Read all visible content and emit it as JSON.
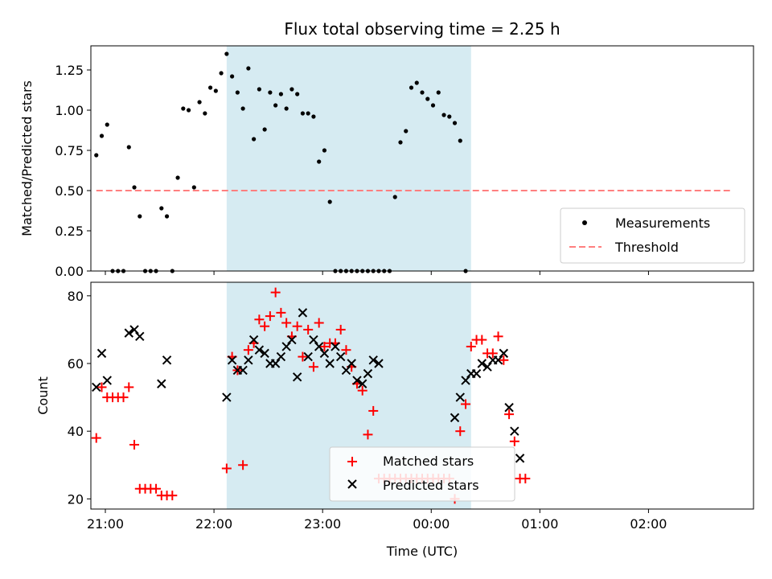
{
  "chart_data": [
    {
      "type": "scatter",
      "title": "Flux total observing time = 2.25 h",
      "xlabel": "",
      "ylabel": "Matched/Predicted stars",
      "x_unit": "time (UTC)",
      "xlim": [
        "20:52",
        "02:58"
      ],
      "ylim": [
        0,
        1.4
      ],
      "yticks": [
        "0.00",
        "0.25",
        "0.50",
        "0.75",
        "1.00",
        "1.25"
      ],
      "shaded_span": {
        "start": "22:07",
        "end": "00:22",
        "color": "#add8e6"
      },
      "threshold": {
        "label": "Threshold",
        "value": 0.5,
        "x_start": "20:55",
        "x_end": "02:45",
        "color": "#ff7f7f"
      },
      "legend": {
        "position": "lower-right",
        "entries": [
          "Measurements",
          "Threshold"
        ]
      },
      "series": [
        {
          "name": "Measurements",
          "color": "#000000",
          "points": [
            [
              "20:55",
              0.72
            ],
            [
              "20:58",
              0.84
            ],
            [
              "21:01",
              0.91
            ],
            [
              "21:04",
              0.0
            ],
            [
              "21:07",
              0.0
            ],
            [
              "21:10",
              0.0
            ],
            [
              "21:13",
              0.77
            ],
            [
              "21:16",
              0.52
            ],
            [
              "21:19",
              0.34
            ],
            [
              "21:22",
              0.0
            ],
            [
              "21:25",
              0.0
            ],
            [
              "21:28",
              0.0
            ],
            [
              "21:31",
              0.39
            ],
            [
              "21:34",
              0.34
            ],
            [
              "21:37",
              0.0
            ],
            [
              "21:40",
              0.58
            ],
            [
              "21:43",
              1.01
            ],
            [
              "21:46",
              1.0
            ],
            [
              "21:49",
              0.52
            ],
            [
              "21:52",
              1.05
            ],
            [
              "21:55",
              0.98
            ],
            [
              "21:58",
              1.14
            ],
            [
              "22:01",
              1.12
            ],
            [
              "22:04",
              1.23
            ],
            [
              "22:07",
              1.35
            ],
            [
              "22:10",
              1.21
            ],
            [
              "22:13",
              1.11
            ],
            [
              "22:16",
              1.01
            ],
            [
              "22:19",
              1.26
            ],
            [
              "22:22",
              0.82
            ],
            [
              "22:25",
              1.13
            ],
            [
              "22:28",
              0.88
            ],
            [
              "22:31",
              1.11
            ],
            [
              "22:34",
              1.03
            ],
            [
              "22:37",
              1.1
            ],
            [
              "22:40",
              1.01
            ],
            [
              "22:43",
              1.13
            ],
            [
              "22:46",
              1.1
            ],
            [
              "22:49",
              0.98
            ],
            [
              "22:52",
              0.98
            ],
            [
              "22:55",
              0.96
            ],
            [
              "22:58",
              0.68
            ],
            [
              "23:01",
              0.75
            ],
            [
              "23:04",
              0.43
            ],
            [
              "23:07",
              0.0
            ],
            [
              "23:10",
              0.0
            ],
            [
              "23:13",
              0.0
            ],
            [
              "23:16",
              0.0
            ],
            [
              "23:19",
              0.0
            ],
            [
              "23:22",
              0.0
            ],
            [
              "23:25",
              0.0
            ],
            [
              "23:28",
              0.0
            ],
            [
              "23:31",
              0.0
            ],
            [
              "23:34",
              0.0
            ],
            [
              "23:37",
              0.0
            ],
            [
              "23:40",
              0.46
            ],
            [
              "23:43",
              0.8
            ],
            [
              "23:46",
              0.87
            ],
            [
              "23:49",
              1.14
            ],
            [
              "23:52",
              1.17
            ],
            [
              "23:55",
              1.11
            ],
            [
              "23:58",
              1.07
            ],
            [
              "00:01",
              1.03
            ],
            [
              "00:04",
              1.11
            ],
            [
              "00:07",
              0.97
            ],
            [
              "00:10",
              0.96
            ],
            [
              "00:13",
              0.92
            ],
            [
              "00:16",
              0.81
            ],
            [
              "00:19",
              0.0
            ]
          ]
        }
      ]
    },
    {
      "type": "scatter",
      "title": "",
      "xlabel": "Time (UTC)",
      "ylabel": "Count",
      "xlim": [
        "20:52",
        "02:58"
      ],
      "ylim": [
        17,
        84
      ],
      "xticks": [
        "21:00",
        "22:00",
        "23:00",
        "00:00",
        "01:00",
        "02:00"
      ],
      "yticks": [
        "20",
        "40",
        "60",
        "80"
      ],
      "shaded_span": {
        "start": "22:07",
        "end": "00:22",
        "color": "#add8e6"
      },
      "legend": {
        "position": "bottom-center",
        "entries": [
          "Matched stars",
          "Predicted stars"
        ]
      },
      "series": [
        {
          "name": "Matched stars",
          "marker": "plus",
          "color": "#ff0000",
          "points": [
            [
              "20:55",
              38
            ],
            [
              "20:58",
              53
            ],
            [
              "21:01",
              50
            ],
            [
              "21:04",
              50
            ],
            [
              "21:07",
              50
            ],
            [
              "21:10",
              50
            ],
            [
              "21:13",
              53
            ],
            [
              "21:16",
              36
            ],
            [
              "21:19",
              23
            ],
            [
              "21:22",
              23
            ],
            [
              "21:25",
              23
            ],
            [
              "21:28",
              23
            ],
            [
              "21:31",
              21
            ],
            [
              "21:34",
              21
            ],
            [
              "21:37",
              21
            ],
            [
              "22:07",
              29
            ],
            [
              "22:10",
              62
            ],
            [
              "22:13",
              58
            ],
            [
              "22:16",
              30
            ],
            [
              "22:19",
              64
            ],
            [
              "22:22",
              66
            ],
            [
              "22:25",
              73
            ],
            [
              "22:28",
              71
            ],
            [
              "22:31",
              74
            ],
            [
              "22:34",
              81
            ],
            [
              "22:37",
              75
            ],
            [
              "22:40",
              72
            ],
            [
              "22:43",
              68
            ],
            [
              "22:46",
              71
            ],
            [
              "22:49",
              62
            ],
            [
              "22:52",
              70
            ],
            [
              "22:55",
              59
            ],
            [
              "22:58",
              72
            ],
            [
              "23:01",
              65
            ],
            [
              "23:04",
              66
            ],
            [
              "23:07",
              66
            ],
            [
              "23:10",
              70
            ],
            [
              "23:13",
              64
            ],
            [
              "23:16",
              59
            ],
            [
              "23:19",
              54
            ],
            [
              "23:22",
              52
            ],
            [
              "23:25",
              39
            ],
            [
              "23:28",
              46
            ],
            [
              "23:31",
              26
            ],
            [
              "23:34",
              26
            ],
            [
              "23:37",
              26
            ],
            [
              "23:40",
              26
            ],
            [
              "23:43",
              26
            ],
            [
              "23:46",
              26
            ],
            [
              "23:49",
              26
            ],
            [
              "23:52",
              26
            ],
            [
              "23:55",
              26
            ],
            [
              "23:58",
              26
            ],
            [
              "00:01",
              26
            ],
            [
              "00:04",
              26
            ],
            [
              "00:07",
              26
            ],
            [
              "00:10",
              26
            ],
            [
              "00:13",
              20
            ],
            [
              "00:16",
              40
            ],
            [
              "00:19",
              48
            ],
            [
              "00:22",
              65
            ],
            [
              "00:25",
              67
            ],
            [
              "00:28",
              67
            ],
            [
              "00:31",
              63
            ],
            [
              "00:34",
              63
            ],
            [
              "00:37",
              68
            ],
            [
              "00:40",
              61
            ],
            [
              "00:43",
              45
            ],
            [
              "00:46",
              37
            ],
            [
              "00:49",
              26
            ],
            [
              "00:52",
              26
            ]
          ]
        },
        {
          "name": "Predicted stars",
          "marker": "x",
          "color": "#000000",
          "points": [
            [
              "20:55",
              53
            ],
            [
              "20:58",
              63
            ],
            [
              "21:01",
              55
            ],
            [
              "21:13",
              69
            ],
            [
              "21:16",
              70
            ],
            [
              "21:19",
              68
            ],
            [
              "21:31",
              54
            ],
            [
              "21:34",
              61
            ],
            [
              "22:07",
              50
            ],
            [
              "22:10",
              61
            ],
            [
              "22:13",
              58
            ],
            [
              "22:16",
              58
            ],
            [
              "22:19",
              61
            ],
            [
              "22:22",
              67
            ],
            [
              "22:25",
              64
            ],
            [
              "22:28",
              63
            ],
            [
              "22:31",
              60
            ],
            [
              "22:34",
              60
            ],
            [
              "22:37",
              62
            ],
            [
              "22:40",
              65
            ],
            [
              "22:43",
              67
            ],
            [
              "22:46",
              56
            ],
            [
              "22:49",
              75
            ],
            [
              "22:52",
              62
            ],
            [
              "22:55",
              67
            ],
            [
              "22:58",
              65
            ],
            [
              "23:01",
              63
            ],
            [
              "23:04",
              60
            ],
            [
              "23:07",
              65
            ],
            [
              "23:10",
              62
            ],
            [
              "23:13",
              58
            ],
            [
              "23:16",
              60
            ],
            [
              "23:19",
              55
            ],
            [
              "23:22",
              54
            ],
            [
              "23:25",
              57
            ],
            [
              "23:28",
              61
            ],
            [
              "23:31",
              60
            ],
            [
              "00:13",
              44
            ],
            [
              "00:16",
              50
            ],
            [
              "00:19",
              55
            ],
            [
              "00:22",
              57
            ],
            [
              "00:25",
              57
            ],
            [
              "00:28",
              60
            ],
            [
              "00:31",
              59
            ],
            [
              "00:34",
              61
            ],
            [
              "00:37",
              61
            ],
            [
              "00:40",
              63
            ],
            [
              "00:43",
              47
            ],
            [
              "00:46",
              40
            ],
            [
              "00:49",
              32
            ]
          ]
        }
      ]
    }
  ]
}
